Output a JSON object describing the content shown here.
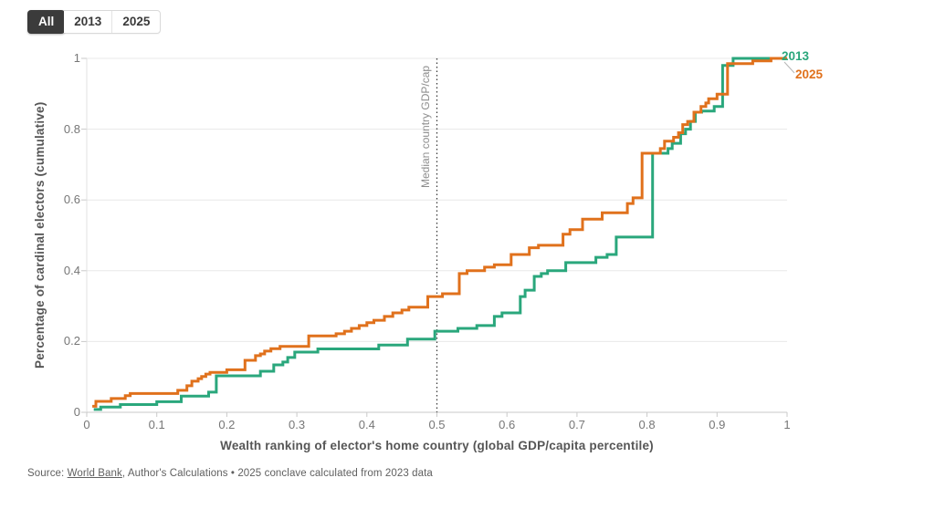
{
  "controls": {
    "tabs": [
      {
        "label": "All",
        "selected": true
      },
      {
        "label": "2013",
        "selected": false
      },
      {
        "label": "2025",
        "selected": false
      }
    ]
  },
  "chart_data": {
    "type": "line",
    "subtype": "step-cumulative-distribution",
    "title": "",
    "xlabel": "Wealth ranking of elector's home country (global GDP/capita percentile)",
    "ylabel": "Percentage of cardinal electors (cumulative)",
    "xlim": [
      0,
      1
    ],
    "ylim": [
      0,
      1
    ],
    "x_ticks": [
      "0",
      "0.1",
      "0.2",
      "0.3",
      "0.4",
      "0.5",
      "0.6",
      "0.7",
      "0.8",
      "0.9",
      "1"
    ],
    "y_ticks": [
      "0",
      "0.2",
      "0.4",
      "0.6",
      "0.8",
      "1"
    ],
    "grid": "horizontal",
    "legend_position": "line-end-labels",
    "annotation": {
      "x": 0.5,
      "label": "Median country GDP/cap",
      "line_style": "dotted",
      "color": "#3d3d3d"
    },
    "colors": {
      "grid": "#e8e8e8",
      "axis": "#c9c9c9",
      "tick": "#c9c9c9",
      "connector": "#b5b5b5"
    },
    "series": [
      {
        "name": "2013",
        "color": "#2aa77c",
        "points": [
          [
            0.01,
            0.008
          ],
          [
            0.02,
            0.015
          ],
          [
            0.048,
            0.022
          ],
          [
            0.1,
            0.03
          ],
          [
            0.135,
            0.046
          ],
          [
            0.174,
            0.057
          ],
          [
            0.185,
            0.103
          ],
          [
            0.248,
            0.116
          ],
          [
            0.267,
            0.134
          ],
          [
            0.28,
            0.142
          ],
          [
            0.287,
            0.155
          ],
          [
            0.297,
            0.17
          ],
          [
            0.33,
            0.179
          ],
          [
            0.417,
            0.19
          ],
          [
            0.458,
            0.207
          ],
          [
            0.497,
            0.229
          ],
          [
            0.53,
            0.237
          ],
          [
            0.557,
            0.245
          ],
          [
            0.582,
            0.271
          ],
          [
            0.593,
            0.281
          ],
          [
            0.619,
            0.327
          ],
          [
            0.626,
            0.345
          ],
          [
            0.639,
            0.384
          ],
          [
            0.649,
            0.392
          ],
          [
            0.658,
            0.4
          ],
          [
            0.684,
            0.423
          ],
          [
            0.727,
            0.438
          ],
          [
            0.743,
            0.446
          ],
          [
            0.756,
            0.495
          ],
          [
            0.808,
            0.732
          ],
          [
            0.83,
            0.745
          ],
          [
            0.836,
            0.76
          ],
          [
            0.848,
            0.787
          ],
          [
            0.855,
            0.8
          ],
          [
            0.862,
            0.822
          ],
          [
            0.869,
            0.848
          ],
          [
            0.878,
            0.851
          ],
          [
            0.896,
            0.864
          ],
          [
            0.908,
            0.98
          ],
          [
            0.923,
            1.0
          ],
          [
            1.0,
            1.0
          ]
        ]
      },
      {
        "name": "2025",
        "color": "#e0711c",
        "points": [
          [
            0.008,
            0.017
          ],
          [
            0.013,
            0.031
          ],
          [
            0.035,
            0.039
          ],
          [
            0.055,
            0.047
          ],
          [
            0.062,
            0.053
          ],
          [
            0.13,
            0.062
          ],
          [
            0.143,
            0.075
          ],
          [
            0.15,
            0.088
          ],
          [
            0.159,
            0.095
          ],
          [
            0.164,
            0.101
          ],
          [
            0.17,
            0.108
          ],
          [
            0.176,
            0.113
          ],
          [
            0.2,
            0.12
          ],
          [
            0.226,
            0.147
          ],
          [
            0.241,
            0.16
          ],
          [
            0.248,
            0.165
          ],
          [
            0.254,
            0.173
          ],
          [
            0.263,
            0.18
          ],
          [
            0.276,
            0.186
          ],
          [
            0.317,
            0.216
          ],
          [
            0.356,
            0.222
          ],
          [
            0.368,
            0.229
          ],
          [
            0.378,
            0.237
          ],
          [
            0.389,
            0.245
          ],
          [
            0.4,
            0.253
          ],
          [
            0.41,
            0.26
          ],
          [
            0.425,
            0.271
          ],
          [
            0.437,
            0.281
          ],
          [
            0.45,
            0.289
          ],
          [
            0.46,
            0.297
          ],
          [
            0.487,
            0.327
          ],
          [
            0.508,
            0.335
          ],
          [
            0.532,
            0.392
          ],
          [
            0.543,
            0.4
          ],
          [
            0.568,
            0.41
          ],
          [
            0.582,
            0.417
          ],
          [
            0.606,
            0.446
          ],
          [
            0.632,
            0.465
          ],
          [
            0.645,
            0.472
          ],
          [
            0.68,
            0.503
          ],
          [
            0.69,
            0.516
          ],
          [
            0.708,
            0.546
          ],
          [
            0.736,
            0.564
          ],
          [
            0.772,
            0.59
          ],
          [
            0.78,
            0.606
          ],
          [
            0.793,
            0.732
          ],
          [
            0.819,
            0.745
          ],
          [
            0.825,
            0.766
          ],
          [
            0.838,
            0.777
          ],
          [
            0.845,
            0.79
          ],
          [
            0.851,
            0.813
          ],
          [
            0.858,
            0.822
          ],
          [
            0.867,
            0.848
          ],
          [
            0.877,
            0.864
          ],
          [
            0.884,
            0.874
          ],
          [
            0.888,
            0.886
          ],
          [
            0.9,
            0.899
          ],
          [
            0.915,
            0.985
          ],
          [
            0.951,
            0.993
          ],
          [
            0.977,
            1.0
          ],
          [
            1.0,
            1.0
          ]
        ]
      }
    ]
  },
  "source": {
    "prefix": "Source: ",
    "link": "World Bank",
    "suffix": ", Author's Calculations • 2025 conclave calculated from 2023 data"
  }
}
